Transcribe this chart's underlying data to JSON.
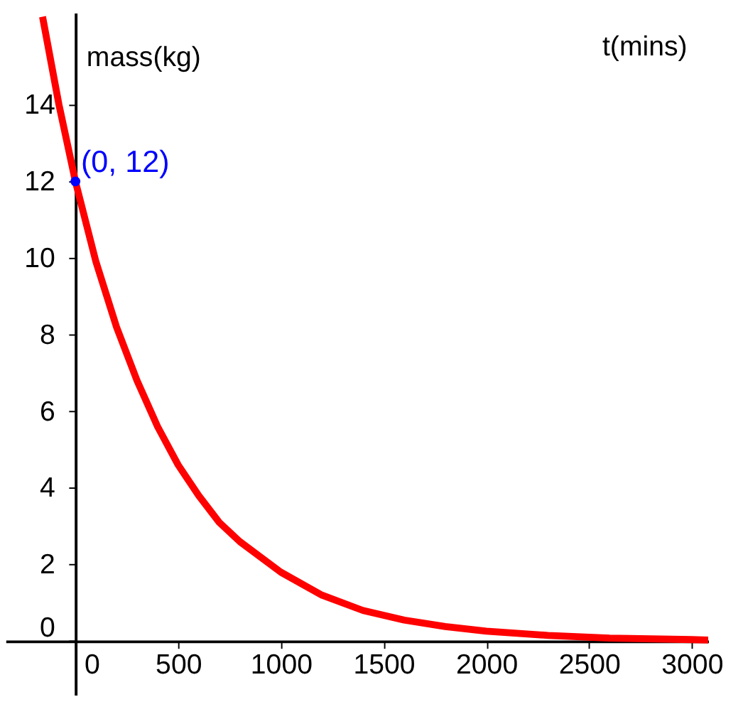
{
  "chart_data": {
    "type": "line",
    "xlabel": "t(mins)",
    "ylabel": "mass(kg)",
    "x": [
      -160,
      -80,
      0,
      100,
      200,
      300,
      400,
      500,
      600,
      700,
      800,
      1000,
      1200,
      1400,
      1600,
      1800,
      2000,
      2300,
      2600,
      3000,
      3080
    ],
    "series": [
      {
        "color": "#ff0000",
        "values": [
          16.3,
          14,
          12,
          9.9,
          8.2,
          6.8,
          5.6,
          4.6,
          3.8,
          3.1,
          2.6,
          1.8,
          1.2,
          0.8,
          0.55,
          0.38,
          0.26,
          0.15,
          0.08,
          0.04,
          0.03
        ]
      }
    ],
    "xlim": [
      -340,
      3080
    ],
    "ylim": [
      -1.4,
      16.4
    ],
    "xticks": [
      0,
      500,
      1000,
      1500,
      2000,
      2500,
      3000
    ],
    "yticks": [
      0,
      2,
      4,
      6,
      8,
      10,
      12,
      14
    ],
    "annotations": [
      {
        "text": "(0, 12)",
        "x": 0,
        "y": 12
      }
    ],
    "grid": false,
    "marker": "none",
    "line_style": "solid"
  }
}
